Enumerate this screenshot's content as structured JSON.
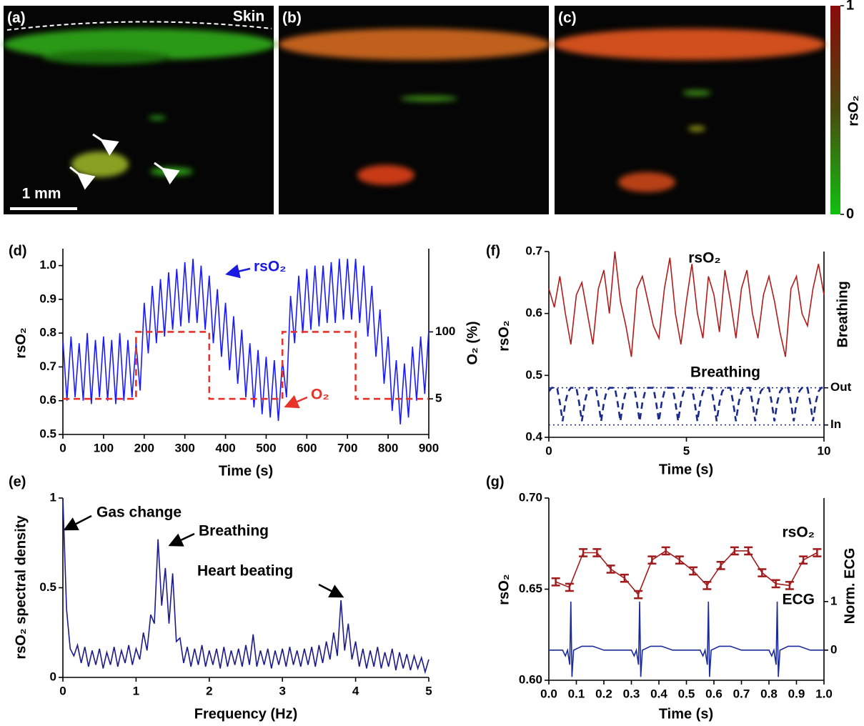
{
  "images": [
    {
      "label": "(a)",
      "annotation": "Skin",
      "scale_bar": "1 mm"
    },
    {
      "label": "(b)"
    },
    {
      "label": "(c)"
    }
  ],
  "colorbar": {
    "label": "rsO₂",
    "ticks": [
      0,
      1
    ]
  },
  "chart_data": [
    {
      "type": "line",
      "panel": "(d)",
      "xlabel": "Time (s)",
      "ylabel": "rsO₂",
      "y2label": "O₂ (%)",
      "xlim": [
        0,
        900
      ],
      "xticks": [
        0,
        100,
        200,
        300,
        400,
        500,
        600,
        700,
        800,
        900
      ],
      "ylim": [
        0.5,
        1.05
      ],
      "yticks": [
        0.5,
        0.6,
        0.7,
        0.8,
        0.9,
        {
          "value": 1,
          "label": "1.0"
        }
      ],
      "y2lim": [
        -45.5,
        218
      ],
      "y2ticks": [
        5,
        100
      ],
      "annotations": [
        {
          "text": "rsO₂",
          "color": "#1a1ae0"
        },
        {
          "text": "O₂",
          "color": "#e8322a"
        }
      ],
      "series": [
        {
          "color": "#1a1aff",
          "x": [
            0,
            10,
            20,
            30,
            40,
            50,
            60,
            70,
            80,
            90,
            100,
            110,
            120,
            130,
            140,
            150,
            160,
            170,
            180,
            190,
            200,
            210,
            220,
            230,
            240,
            250,
            260,
            270,
            280,
            290,
            300,
            310,
            320,
            330,
            340,
            350,
            360,
            370,
            380,
            390,
            400,
            410,
            420,
            430,
            440,
            450,
            460,
            470,
            480,
            490,
            500,
            510,
            520,
            530,
            540,
            550,
            560,
            570,
            580,
            590,
            600,
            610,
            620,
            630,
            640,
            650,
            660,
            670,
            680,
            690,
            700,
            710,
            720,
            730,
            740,
            750,
            760,
            770,
            780,
            790,
            800,
            810,
            820,
            830,
            840,
            850,
            860,
            870,
            880,
            890,
            900
          ],
          "values": [
            0.78,
            0.6,
            0.79,
            0.61,
            0.77,
            0.6,
            0.8,
            0.59,
            0.78,
            0.61,
            0.79,
            0.6,
            0.78,
            0.59,
            0.8,
            0.6,
            0.78,
            0.61,
            0.77,
            0.63,
            0.89,
            0.74,
            0.94,
            0.77,
            0.96,
            0.79,
            0.98,
            0.81,
            0.99,
            0.82,
            1.01,
            0.83,
            1.02,
            0.83,
            1.0,
            0.81,
            0.97,
            0.77,
            0.93,
            0.73,
            0.89,
            0.69,
            0.85,
            0.65,
            0.81,
            0.61,
            0.77,
            0.58,
            0.75,
            0.56,
            0.73,
            0.55,
            0.72,
            0.54,
            0.72,
            0.61,
            0.91,
            0.77,
            0.97,
            0.8,
            0.99,
            0.81,
            1.0,
            0.82,
            1.0,
            0.83,
            1.01,
            0.83,
            1.02,
            0.84,
            1.02,
            0.84,
            1.02,
            0.83,
            1.0,
            0.79,
            0.94,
            0.73,
            0.87,
            0.65,
            0.79,
            0.57,
            0.72,
            0.53,
            0.71,
            0.55,
            0.76,
            0.6,
            0.79,
            0.62,
            0.81
          ]
        },
        {
          "color": "#e8322a",
          "dash": "dashed",
          "axis": "y2",
          "x": [
            0,
            180,
            180,
            360,
            360,
            540,
            540,
            720,
            720,
            900
          ],
          "values": [
            5,
            5,
            100,
            100,
            5,
            5,
            100,
            100,
            5,
            5
          ]
        }
      ]
    },
    {
      "type": "line",
      "panel": "(e)",
      "xlabel": "Frequency (Hz)",
      "ylabel": "rsO₂ spectral density",
      "xlim": [
        0,
        5
      ],
      "xticks": [
        0,
        1,
        2,
        3,
        4,
        5
      ],
      "ylim": [
        0,
        1
      ],
      "yticks": [
        0,
        0.5,
        1
      ],
      "annotations": [
        {
          "text": "Gas change",
          "color": "#000000"
        },
        {
          "text": "Breathing",
          "color": "#000000"
        },
        {
          "text": "Heart beating",
          "color": "#000000"
        }
      ],
      "series": [
        {
          "color": "#1b1b8a",
          "x": [
            0,
            0.05,
            0.1,
            0.15,
            0.2,
            0.25,
            0.3,
            0.35,
            0.4,
            0.45,
            0.5,
            0.55,
            0.6,
            0.65,
            0.7,
            0.75,
            0.8,
            0.85,
            0.9,
            0.95,
            1,
            1.05,
            1.1,
            1.15,
            1.2,
            1.25,
            1.3,
            1.35,
            1.4,
            1.45,
            1.5,
            1.55,
            1.6,
            1.65,
            1.7,
            1.75,
            1.8,
            1.85,
            1.9,
            1.95,
            2,
            2.05,
            2.1,
            2.15,
            2.2,
            2.25,
            2.3,
            2.35,
            2.4,
            2.45,
            2.5,
            2.55,
            2.6,
            2.65,
            2.7,
            2.75,
            2.8,
            2.85,
            2.9,
            2.95,
            3,
            3.05,
            3.1,
            3.15,
            3.2,
            3.25,
            3.3,
            3.35,
            3.4,
            3.45,
            3.5,
            3.55,
            3.6,
            3.65,
            3.7,
            3.75,
            3.8,
            3.85,
            3.9,
            3.95,
            4,
            4.05,
            4.1,
            4.15,
            4.2,
            4.25,
            4.3,
            4.35,
            4.4,
            4.45,
            4.5,
            4.55,
            4.6,
            4.65,
            4.7,
            4.75,
            4.8,
            4.85,
            4.9,
            4.95,
            5
          ],
          "values": [
            1,
            0.38,
            0.16,
            0.12,
            0.18,
            0.08,
            0.17,
            0.06,
            0.15,
            0.07,
            0.16,
            0.05,
            0.14,
            0.07,
            0.17,
            0.06,
            0.15,
            0.08,
            0.18,
            0.07,
            0.16,
            0.1,
            0.25,
            0.15,
            0.35,
            0.3,
            0.77,
            0.4,
            0.61,
            0.3,
            0.58,
            0.2,
            0.22,
            0.08,
            0.17,
            0.06,
            0.16,
            0.07,
            0.18,
            0.06,
            0.15,
            0.07,
            0.16,
            0.05,
            0.17,
            0.06,
            0.15,
            0.07,
            0.16,
            0.06,
            0.18,
            0.07,
            0.24,
            0.06,
            0.15,
            0.07,
            0.16,
            0.05,
            0.15,
            0.07,
            0.16,
            0.06,
            0.17,
            0.07,
            0.15,
            0.06,
            0.16,
            0.07,
            0.17,
            0.06,
            0.18,
            0.08,
            0.2,
            0.1,
            0.25,
            0.12,
            0.43,
            0.15,
            0.3,
            0.1,
            0.2,
            0.06,
            0.16,
            0.05,
            0.15,
            0.06,
            0.17,
            0.05,
            0.14,
            0.06,
            0.16,
            0.04,
            0.14,
            0.05,
            0.13,
            0.04,
            0.12,
            0.05,
            0.11,
            0.03,
            0.1
          ]
        }
      ]
    },
    {
      "type": "line",
      "panel": "(f)",
      "xlabel": "Time (s)",
      "ylabel": "rsO₂",
      "y2label": "Breathing",
      "xlim": [
        0,
        10
      ],
      "xticks": [
        0,
        5,
        10
      ],
      "ylim": [
        0.4,
        0.7
      ],
      "yticks": [
        0.4,
        0.5,
        0.6,
        0.7
      ],
      "y2lim": [
        -0.333,
        4.667
      ],
      "y2ticks": [
        {
          "value": 1,
          "label": "Out"
        },
        {
          "value": 0,
          "label": "In"
        }
      ],
      "y2grid": true,
      "annotations": [
        {
          "text": "rsO₂",
          "color": "#000000"
        },
        {
          "text": "Breathing",
          "color": "#000000"
        }
      ],
      "series": [
        {
          "color": "#b01c1c",
          "x": [
            0,
            0.2,
            0.4,
            0.6,
            0.8,
            1,
            1.2,
            1.4,
            1.6,
            1.8,
            2,
            2.2,
            2.4,
            2.6,
            2.8,
            3,
            3.2,
            3.4,
            3.6,
            3.8,
            4,
            4.2,
            4.4,
            4.6,
            4.8,
            5,
            5.2,
            5.4,
            5.6,
            5.8,
            6,
            6.2,
            6.4,
            6.6,
            6.8,
            7,
            7.2,
            7.4,
            7.6,
            7.8,
            8,
            8.2,
            8.4,
            8.6,
            8.8,
            9,
            9.2,
            9.4,
            9.6,
            9.8,
            10
          ],
          "values": [
            0.64,
            0.61,
            0.66,
            0.6,
            0.55,
            0.63,
            0.65,
            0.6,
            0.55,
            0.64,
            0.67,
            0.6,
            0.7,
            0.62,
            0.58,
            0.53,
            0.64,
            0.66,
            0.62,
            0.58,
            0.56,
            0.64,
            0.69,
            0.6,
            0.55,
            0.62,
            0.68,
            0.6,
            0.56,
            0.66,
            0.63,
            0.57,
            0.67,
            0.62,
            0.56,
            0.64,
            0.67,
            0.6,
            0.56,
            0.63,
            0.66,
            0.62,
            0.57,
            0.53,
            0.64,
            0.66,
            0.6,
            0.58,
            0.64,
            0.68,
            0.63
          ]
        },
        {
          "color": "#1a2a8a",
          "dash": "dashed",
          "axis": "y2",
          "x": [
            0,
            0.1,
            0.2,
            0.3,
            0.4,
            0.5,
            0.6,
            0.7,
            0.8,
            0.9,
            1,
            1.1,
            1.2,
            1.3,
            1.4,
            1.5,
            1.6,
            1.7,
            1.8,
            1.9,
            2,
            2.1,
            2.2,
            2.3,
            2.4,
            2.5,
            2.6,
            2.7,
            2.8,
            2.9,
            3,
            3.1,
            3.2,
            3.3,
            3.4,
            3.5,
            3.6,
            3.7,
            3.8,
            3.9,
            4,
            4.1,
            4.2,
            4.3,
            4.4,
            4.5,
            4.6,
            4.7,
            4.8,
            4.9,
            5,
            5.1,
            5.2,
            5.3,
            5.4,
            5.5,
            5.6,
            5.7,
            5.8,
            5.9,
            6,
            6.1,
            6.2,
            6.3,
            6.4,
            6.5,
            6.6,
            6.7,
            6.8,
            6.9,
            7,
            7.1,
            7.2,
            7.3,
            7.4,
            7.5,
            7.6,
            7.7,
            7.8,
            7.9,
            8,
            8.1,
            8.2,
            8.3,
            8.4,
            8.5,
            8.6,
            8.7,
            8.8,
            8.9,
            9,
            9.1,
            9.2,
            9.3,
            9.4,
            9.5,
            9.6,
            9.7,
            9.8,
            9.9,
            10
          ],
          "values": [
            0.9,
            1,
            1,
            1,
            0.6,
            0.1,
            0.6,
            0.9,
            1,
            1,
            1,
            0.6,
            0.1,
            0.6,
            0.9,
            1,
            1,
            1,
            0.6,
            0.1,
            0.6,
            0.9,
            1,
            1,
            1,
            0.6,
            0.1,
            0.6,
            0.9,
            1,
            1,
            1,
            0.6,
            0.1,
            0.6,
            0.9,
            1,
            1,
            1,
            0.6,
            0.1,
            0.6,
            0.9,
            1,
            1,
            1,
            0.6,
            0.1,
            0.6,
            0.9,
            1,
            1,
            1,
            0.6,
            0.1,
            0.6,
            0.9,
            1,
            1,
            1,
            0.6,
            0.1,
            0.6,
            0.9,
            1,
            1,
            1,
            0.6,
            0.1,
            0.6,
            0.9,
            1,
            1,
            1,
            0.6,
            0.1,
            0.6,
            0.9,
            1,
            1,
            1,
            0.6,
            0.1,
            0.6,
            0.9,
            1,
            1,
            1,
            0.6,
            0.1,
            0.6,
            0.9,
            1,
            1,
            1,
            0.6,
            0.1,
            0.6,
            0.9,
            1,
            1
          ]
        }
      ]
    },
    {
      "type": "line",
      "panel": "(g)",
      "xlabel": "Time (s)",
      "ylabel": "rsO₂",
      "y2label": "Norm. ECG",
      "xlim": [
        0,
        1
      ],
      "xticks": [
        {
          "value": 0,
          "label": "0.0"
        },
        0.1,
        0.2,
        0.3,
        0.4,
        0.5,
        0.6,
        0.7,
        0.8,
        0.9,
        {
          "value": 1,
          "label": "1.0"
        }
      ],
      "ylim": [
        0.6,
        0.7
      ],
      "yticks": [
        {
          "value": 0.6,
          "label": "0.60"
        },
        {
          "value": 0.65,
          "label": "0.65"
        },
        {
          "value": 0.7,
          "label": "0.70"
        }
      ],
      "y2lim": [
        -0.62,
        3.13
      ],
      "y2ticks": [
        0,
        1
      ],
      "annotations": [
        {
          "text": "rsO₂",
          "color": "#000000"
        },
        {
          "text": "ECG",
          "color": "#000000"
        }
      ],
      "series": [
        {
          "color": "#a01c1c",
          "x": [
            0.025,
            0.075,
            0.125,
            0.175,
            0.225,
            0.275,
            0.325,
            0.375,
            0.425,
            0.475,
            0.525,
            0.575,
            0.625,
            0.675,
            0.725,
            0.775,
            0.825,
            0.875,
            0.925,
            0.975
          ],
          "values": [
            0.654,
            0.651,
            0.67,
            0.67,
            0.661,
            0.656,
            0.647,
            0.666,
            0.671,
            0.666,
            0.66,
            0.652,
            0.663,
            0.671,
            0.671,
            0.659,
            0.653,
            0.652,
            0.666,
            0.67
          ],
          "errors": [
            0.002,
            0.002,
            0.002,
            0.002,
            0.002,
            0.002,
            0.002,
            0.002,
            0.002,
            0.002,
            0.002,
            0.002,
            0.002,
            0.002,
            0.002,
            0.002,
            0.002,
            0.002,
            0.002,
            0.002
          ]
        },
        {
          "color": "#1a2a9a",
          "axis": "y2",
          "x": [
            0,
            0.05,
            0.06,
            0.068,
            0.076,
            0.08,
            0.084,
            0.09,
            0.12,
            0.16,
            0.2,
            0.3,
            0.31,
            0.318,
            0.326,
            0.33,
            0.334,
            0.34,
            0.37,
            0.41,
            0.45,
            0.55,
            0.56,
            0.568,
            0.576,
            0.58,
            0.584,
            0.59,
            0.62,
            0.66,
            0.7,
            0.8,
            0.81,
            0.818,
            0.826,
            0.83,
            0.834,
            0.84,
            0.87,
            0.91,
            0.95,
            1
          ],
          "values": [
            0,
            0,
            -0.12,
            0,
            -0.3,
            1,
            -0.55,
            0,
            0.08,
            0.08,
            0,
            0,
            -0.12,
            0,
            -0.3,
            1,
            -0.55,
            0,
            0.08,
            0.08,
            0,
            0,
            -0.12,
            0,
            -0.3,
            1,
            -0.55,
            0,
            0.08,
            0.08,
            0,
            0,
            -0.12,
            0,
            -0.3,
            1,
            -0.55,
            0,
            0.08,
            0.08,
            0,
            0
          ]
        }
      ]
    }
  ]
}
